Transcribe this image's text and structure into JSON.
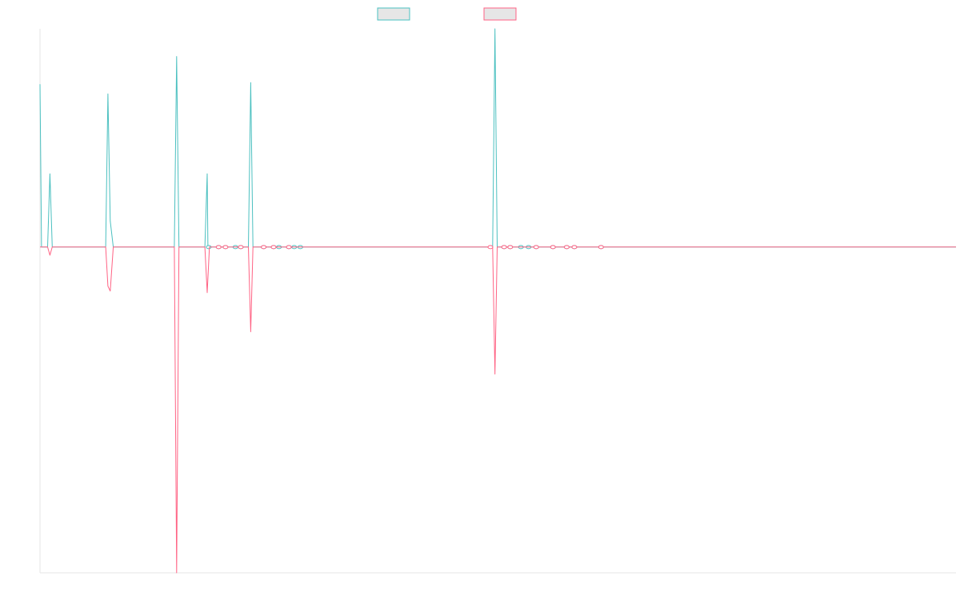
{
  "chart_data": {
    "type": "line",
    "title": "",
    "xlabel": "",
    "ylabel": "",
    "grid": false,
    "legend_placement": "top-center",
    "x_range": [
      0,
      1200
    ],
    "y_range": [
      -1.0,
      0.67
    ],
    "series": [
      {
        "color": "#4bc0c0",
        "points": [
          [
            0,
            0.5
          ],
          [
            2,
            0.0
          ],
          [
            10,
            0.0
          ],
          [
            13,
            0.225
          ],
          [
            16,
            0.0
          ],
          [
            82,
            0.0
          ],
          [
            86,
            0.0
          ],
          [
            89,
            0.47
          ],
          [
            92,
            0.08
          ],
          [
            96,
            0.0
          ],
          [
            172,
            0.0
          ],
          [
            176,
            0.0
          ],
          [
            179,
            0.585
          ],
          [
            182,
            0.0
          ],
          [
            220,
            0.0
          ],
          [
            216,
            0.0
          ],
          [
            219,
            0.225
          ],
          [
            222,
            0.0
          ],
          [
            270,
            0.0
          ],
          [
            273,
            0.0
          ],
          [
            276,
            0.505
          ],
          [
            279,
            0.0
          ],
          [
            350,
            0.0
          ],
          [
            590,
            0.0
          ],
          [
            593,
            0.0
          ],
          [
            596,
            0.67
          ],
          [
            599,
            0.0
          ],
          [
            760,
            0.0
          ],
          [
            1200,
            0.0
          ]
        ],
        "markers_x": [
          221,
          234,
          243,
          256,
          263,
          293,
          306,
          313,
          326,
          333,
          341,
          608,
          616,
          630,
          640,
          650,
          672,
          690,
          700,
          735
        ]
      },
      {
        "color": "#ff6384",
        "points": [
          [
            0,
            0.0
          ],
          [
            10,
            0.0
          ],
          [
            13,
            -0.025
          ],
          [
            16,
            0.0
          ],
          [
            86,
            0.0
          ],
          [
            89,
            -0.12
          ],
          [
            92,
            -0.135
          ],
          [
            96,
            0.0
          ],
          [
            176,
            0.0
          ],
          [
            179,
            -1.0
          ],
          [
            182,
            0.0
          ],
          [
            216,
            0.0
          ],
          [
            219,
            -0.14
          ],
          [
            222,
            0.0
          ],
          [
            273,
            0.0
          ],
          [
            276,
            -0.26
          ],
          [
            279,
            0.0
          ],
          [
            593,
            0.0
          ],
          [
            596,
            -0.39
          ],
          [
            599,
            0.0
          ],
          [
            1200,
            0.0
          ]
        ],
        "markers_x": [
          234,
          243,
          263,
          293,
          306,
          326,
          590,
          608,
          616,
          650,
          672,
          690,
          700,
          735
        ]
      }
    ]
  }
}
